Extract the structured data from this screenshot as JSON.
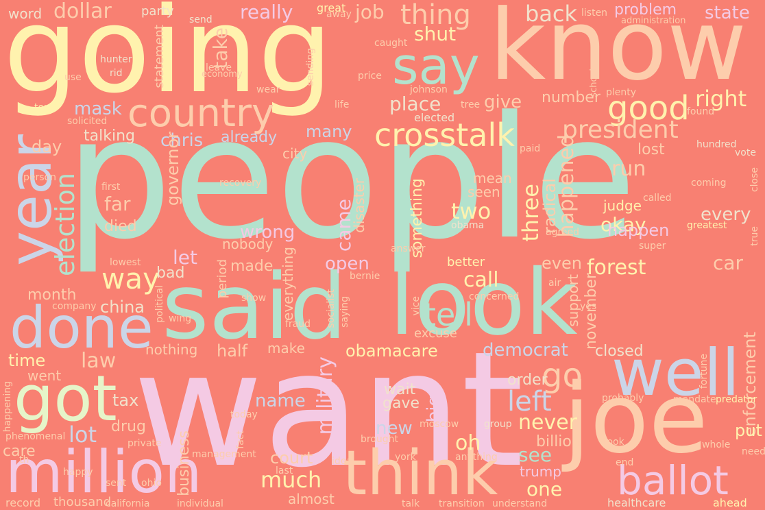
{
  "background": "#f88072",
  "palette": [
    "#b3e2cd",
    "#fdcdac",
    "#cbd5e8",
    "#f4cae4",
    "#e6f5c9",
    "#fff2ae",
    "#f1e2cc",
    "#cccccc"
  ],
  "words": {
    "people": "people",
    "want": "want",
    "going": "going",
    "know": "know",
    "said": "said",
    "look": "look",
    "joe": "joe",
    "think": "think",
    "million": "million",
    "well": "well",
    "got": "got",
    "done": "done",
    "year": "year",
    "country": "country",
    "say": "say",
    "ballot": "ballot",
    "crosstalk": "crosstalk",
    "good": "good",
    "president": "president",
    "way": "way",
    "tell": "tell",
    "go": "go",
    "thing": "thing",
    "right": "right",
    "election": "election",
    "left": "left",
    "back": "back",
    "really": "really",
    "place": "place",
    "forest": "forest",
    "dollar": "dollar",
    "job": "job",
    "mask": "mask",
    "take": "take",
    "shut": "shut",
    "problem": "problem",
    "state": "state",
    "number": "number",
    "give": "give",
    "chris": "chris",
    "talking": "talking",
    "already": "already",
    "many": "many",
    "happened": "happened",
    "run": "run",
    "okay": "okay",
    "three": "three",
    "radical": "radical",
    "every": "every",
    "happen": "happen",
    "judge": "judge",
    "lost": "lost",
    "two": "two",
    "came": "came",
    "open": "open",
    "call": "call",
    "made": "made",
    "let": "let",
    "even": "even",
    "car": "car",
    "never": "never",
    "see": "see",
    "lot": "lot",
    "law": "law",
    "time": "time",
    "tax": "tax",
    "half": "half",
    "nothing": "nothing",
    "obamacare": "obamacare",
    "democrat": "democrat",
    "closed": "closed",
    "enforcement": "enforcement",
    "military": "military",
    "much": "much",
    "court": "court",
    "one": "one",
    "trump": "trump",
    "put": "put",
    "billion": "billion",
    "new": "new",
    "wait": "wait",
    "gave": "gave",
    "big": "big",
    "name": "name",
    "oh": "oh",
    "order": "order",
    "november": "november",
    "support": "support",
    "wrong": "wrong",
    "nobody": "nobody",
    "governor": "governor",
    "far": "far",
    "died": "died",
    "day": "day",
    "china": "china",
    "bad": "bad",
    "month": "month",
    "went": "went",
    "care": "care",
    "drug": "drug",
    "business": "business",
    "management": "management",
    "almost": "almost",
    "thousand": "thousand",
    "record": "record",
    "ahead": "ahead",
    "healthcare": "healthcare",
    "city": "city",
    "seen": "seen",
    "mean": "mean",
    "disaster": "disaster",
    "something": "something",
    "everything": "everything",
    "better": "better",
    "excuse": "excuse",
    "make": "make",
    "period": "period",
    "word": "word",
    "party": "party",
    "great": "great",
    "away": "away",
    "listen": "listen",
    "administration": "administration",
    "send": "send",
    "statement": "statement",
    "hunter": "hunter",
    "rid": "rid",
    "use": "use",
    "leave": "leave",
    "economy": "economy",
    "sending": "sending",
    "caught": "caught",
    "price": "price",
    "johnson": "johnson",
    "school": "school",
    "plenty": "plenty",
    "wear": "wear",
    "top": "top",
    "life": "life",
    "tree": "tree",
    "found": "found",
    "solicited": "solicited",
    "elected": "elected",
    "paid": "paid",
    "hundred": "hundred",
    "vote": "vote",
    "person": "person",
    "first": "first",
    "recovery": "recovery",
    "coming": "coming",
    "close": "close",
    "called": "called",
    "greatest": "greatest",
    "obama": "obama",
    "agreed": "agreed",
    "true": "true",
    "lowest": "lowest",
    "answer": "answer",
    "super": "super",
    "bernie": "bernie",
    "air": "air",
    "company": "company",
    "political": "political",
    "wing": "wing",
    "show": "show",
    "socialist": "socialist",
    "saying": "saying",
    "vice": "vice",
    "concerned": "concerned",
    "yes": "yes",
    "fraud": "fraud",
    "fortune": "fortune",
    "probably": "probably",
    "mandate": "mandate",
    "predator": "predator",
    "happening": "happening",
    "today": "today",
    "fact": "fact",
    "moscow": "moscow",
    "group": "group",
    "phenomenal": "phenomenal",
    "private": "private",
    "brought": "brought",
    "took": "took",
    "whole": "whole",
    "need": "need",
    "th": "th",
    "happy": "happy",
    "idea": "idea",
    "york": "york",
    "anything": "anything",
    "sent": "sent",
    "ohio": "ohio",
    "last": "last",
    "end": "end",
    "california": "california",
    "individual": "individual",
    "talk": "talk",
    "transition": "transition",
    "understand": "understand"
  }
}
